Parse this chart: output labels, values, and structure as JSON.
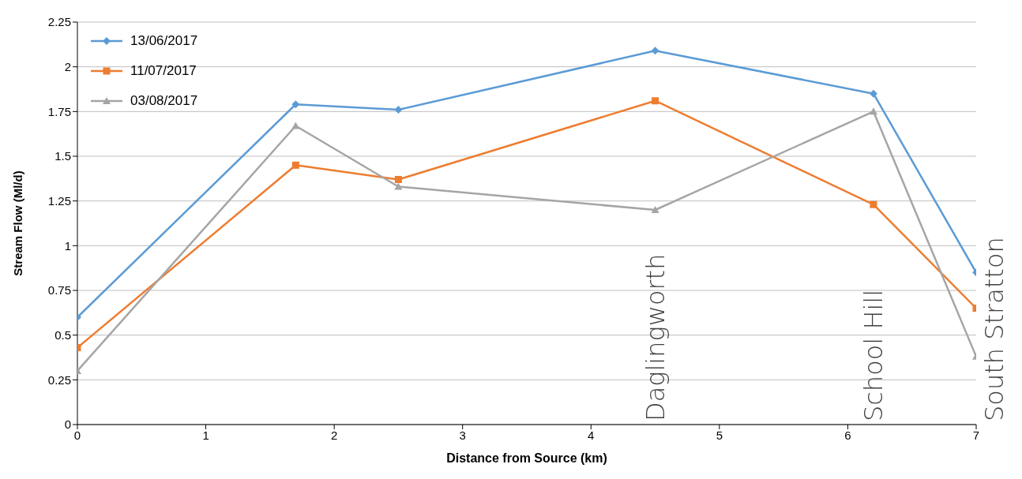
{
  "chart_data": {
    "type": "line",
    "xlabel": "Distance from Source (km)",
    "ylabel": "Stream Flow (Ml/d)",
    "x": [
      0,
      1.7,
      2.5,
      4.5,
      6.2,
      7
    ],
    "series": [
      {
        "name": "13/06/2017",
        "color": "#5b9bd5",
        "marker": "diamond",
        "values": [
          0.6,
          1.79,
          1.76,
          2.09,
          1.85,
          0.85
        ]
      },
      {
        "name": "11/07/2017",
        "color": "#ed7d31",
        "marker": "square",
        "values": [
          0.43,
          1.45,
          1.37,
          1.81,
          1.23,
          0.65
        ]
      },
      {
        "name": "03/08/2017",
        "color": "#a5a5a5",
        "marker": "triangle",
        "values": [
          0.3,
          1.67,
          1.33,
          1.2,
          1.75,
          0.38
        ]
      }
    ],
    "xlim": [
      0,
      7
    ],
    "xticks": [
      0,
      1,
      2,
      3,
      4,
      5,
      6,
      7
    ],
    "ylim": [
      0,
      2.25
    ],
    "yticks": [
      0,
      0.25,
      0.5,
      0.75,
      1,
      1.25,
      1.5,
      1.75,
      2,
      2.25
    ],
    "grid": "y",
    "legend": "top left",
    "line_style": "solid",
    "annotations": [
      "Daglingworth",
      "School Hill",
      "South Stratton"
    ]
  }
}
